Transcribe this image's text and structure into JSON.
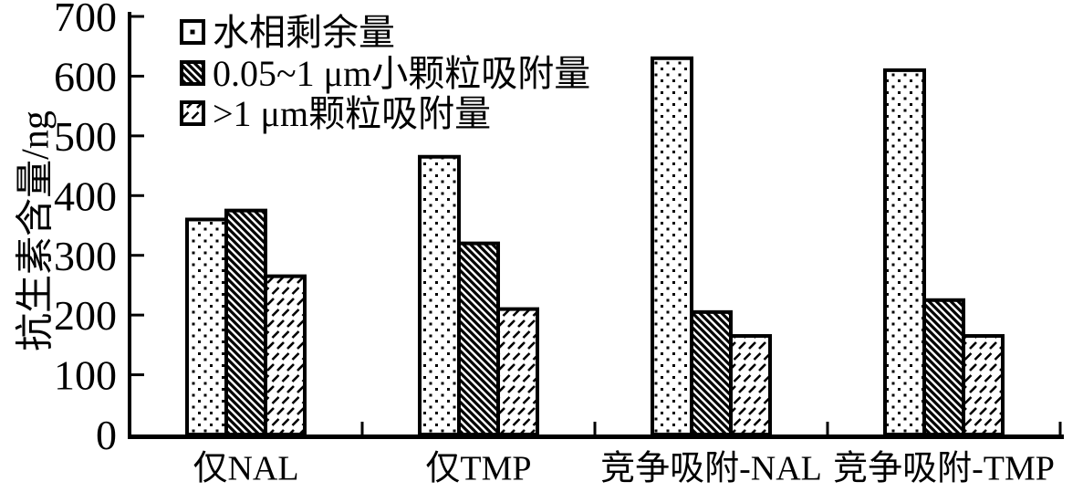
{
  "figure": {
    "background": "#ffffff",
    "foreground": "#000000",
    "kind": "grouped bar chart with hatch patterns"
  },
  "chart_data": {
    "type": "bar",
    "title": "",
    "xlabel": "",
    "ylabel": "抗生素含量/ng",
    "unit": "ng",
    "ylim": [
      0,
      700
    ],
    "ytick_step": 100,
    "yticks": [
      0,
      100,
      200,
      300,
      400,
      500,
      600,
      700
    ],
    "grid": false,
    "legend_position": "top-left-inside",
    "categories": [
      "仅NAL",
      "仅TMP",
      "竞争吸附-NAL",
      "竞争吸附-TMP"
    ],
    "series": [
      {
        "name": "水相剩余量",
        "pattern": "dotted",
        "values": [
          360,
          465,
          630,
          610
        ]
      },
      {
        "name": "0.05~1 μm小颗粒吸附量",
        "pattern": "dense-backslash-hatch",
        "values": [
          375,
          320,
          205,
          225
        ]
      },
      {
        "name": ">1 μm颗粒吸附量",
        "pattern": "sparse-slash-dash",
        "values": [
          265,
          210,
          165,
          165
        ]
      }
    ],
    "colors": {
      "bar_outline": "#000000",
      "bar_fill_base": "#ffffff",
      "axis": "#000000",
      "text": "#000000"
    }
  }
}
